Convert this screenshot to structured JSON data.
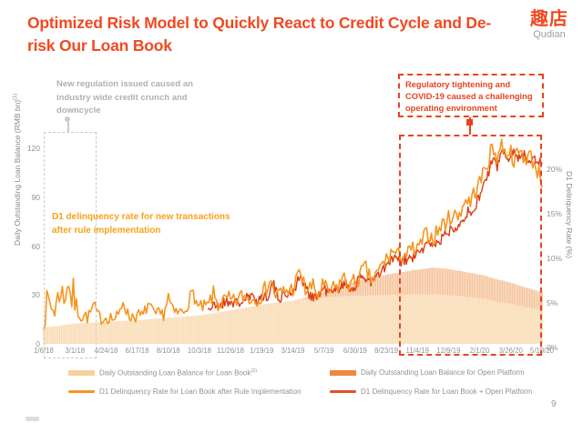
{
  "slide": {
    "title": "Optimized Risk Model to Quickly React to Credit Cycle and De-risk Our Loan Book",
    "page_number": "9",
    "logo": {
      "cn": "趣店",
      "en": "Qudian"
    }
  },
  "annotations": {
    "gray_note": "New regulation issued caused an industry wide credit crunch and downcycle",
    "orange_note": "D1 delinquency rate for new transactions after rule implementation",
    "red_note": "Regulatory tightening and COVID-19 caused a challenging operating environment"
  },
  "colors": {
    "brand": "#F04A21",
    "red_dashed": "#E8431F",
    "orange_line": "#F7941D",
    "red_line": "#DE3B12",
    "area_light_bar": "#F8D9AF",
    "area_light_fill": "#FDEEDA",
    "area_mid_bar": "#EF9E5C",
    "area_mid_fill": "#F6C396",
    "gray_dashed": "#CBCBCB"
  },
  "legend": [
    {
      "swatch": "area",
      "color": "#F9CF9B",
      "label": "Daily Outstanding Loan Balance for Loan Book",
      "sup": "(2)",
      "col": 0,
      "row": 0
    },
    {
      "swatch": "area",
      "color": "#F0873B",
      "label": "Daily Outstanding Loan Balance for Open Platform",
      "sup": "",
      "col": 1,
      "row": 0
    },
    {
      "swatch": "line",
      "color": "#F7941D",
      "label": "D1 Delinquency Rate for Loan Book after Rule Implementation",
      "sup": "",
      "col": 0,
      "row": 1
    },
    {
      "swatch": "line",
      "color": "#E2502B",
      "label": "D1 Delinquency Rate for Loan Book + Open Platform",
      "sup": "",
      "col": 1,
      "row": 1
    }
  ],
  "chart_data": {
    "type": "area+line",
    "title": "",
    "grid": false,
    "legend_position": "bottom",
    "x_tick_labels": [
      "1/6/18",
      "3/1/18",
      "4/24/18",
      "6/17/18",
      "8/10/18",
      "10/3/18",
      "11/26/18",
      "1/19/19",
      "3/14/19",
      "5/7/19",
      "6/30/19",
      "8/23/19",
      "11/4/19",
      "12/9/19",
      "2/1/20",
      "3/26/20",
      "5/19/20"
    ],
    "left_axis": {
      "label": "Daily Outstanding Loan Balance (RMB bn)",
      "sup": "(1)",
      "tick_values": [
        0,
        30,
        60,
        90,
        120
      ],
      "tick_labels": [
        "0",
        "30",
        "60",
        "90",
        "120"
      ],
      "range": [
        0,
        134
      ]
    },
    "right_axis": {
      "label": "D1 Delinquency Rate (%)",
      "tick_values": [
        0,
        5,
        10,
        15,
        20
      ],
      "tick_labels": [
        "0%",
        "5%",
        "10%",
        "15%",
        "20%"
      ],
      "range": [
        0,
        22.5
      ]
    },
    "series": [
      {
        "name": "Daily Outstanding Loan Balance for Loan Book",
        "type": "area",
        "axis": "left",
        "keypoints": [
          [
            0,
            10
          ],
          [
            0.03,
            11
          ],
          [
            0.0625,
            12.5
          ],
          [
            0.125,
            13.5
          ],
          [
            0.1875,
            14.5
          ],
          [
            0.25,
            16
          ],
          [
            0.3125,
            17.5
          ],
          [
            0.375,
            20.5
          ],
          [
            0.4375,
            24
          ],
          [
            0.5,
            26.5
          ],
          [
            0.5625,
            28.5
          ],
          [
            0.625,
            29.5
          ],
          [
            0.6875,
            30
          ],
          [
            0.75,
            30.5
          ],
          [
            0.8125,
            30
          ],
          [
            0.875,
            28
          ],
          [
            0.9375,
            24.5
          ],
          [
            1,
            20.5
          ]
        ]
      },
      {
        "name": "Daily Outstanding Loan Balance for Open Platform",
        "type": "area-stacked",
        "axis": "left",
        "keypoints": [
          [
            0,
            0
          ],
          [
            0.5,
            0
          ],
          [
            0.52,
            0.8
          ],
          [
            0.5625,
            3.5
          ],
          [
            0.625,
            9
          ],
          [
            0.6875,
            12.5
          ],
          [
            0.75,
            15
          ],
          [
            0.78,
            16.5
          ],
          [
            0.8125,
            16
          ],
          [
            0.875,
            14.5
          ],
          [
            0.9375,
            13
          ],
          [
            1,
            11
          ]
        ]
      },
      {
        "name": "D1 Delinquency Rate for Loan Book after Rule Implementation",
        "type": "line",
        "axis": "right",
        "x_start": 0,
        "jitter": 0.5,
        "keypoints": [
          [
            0,
            3.3
          ],
          [
            0.01,
            4.8
          ],
          [
            0.02,
            3.8
          ],
          [
            0.03,
            5.2
          ],
          [
            0.035,
            6.8
          ],
          [
            0.04,
            4.2
          ],
          [
            0.045,
            6.5
          ],
          [
            0.05,
            7.2
          ],
          [
            0.055,
            4.6
          ],
          [
            0.06,
            5.8
          ],
          [
            0.065,
            3.6
          ],
          [
            0.07,
            4.4
          ],
          [
            0.08,
            3.2
          ],
          [
            0.09,
            3.0
          ],
          [
            0.1,
            4.3
          ],
          [
            0.11,
            3.0
          ],
          [
            0.12,
            2.9
          ],
          [
            0.13,
            3.1
          ],
          [
            0.14,
            2.8
          ],
          [
            0.15,
            3.0
          ],
          [
            0.16,
            5.0
          ],
          [
            0.17,
            3.0
          ],
          [
            0.18,
            3.2
          ],
          [
            0.2,
            3.1
          ],
          [
            0.21,
            4.6
          ],
          [
            0.22,
            3.2
          ],
          [
            0.24,
            3.3
          ],
          [
            0.25,
            5.3
          ],
          [
            0.26,
            3.4
          ],
          [
            0.28,
            3.6
          ],
          [
            0.3,
            5.8
          ],
          [
            0.31,
            4.0
          ],
          [
            0.33,
            4.2
          ],
          [
            0.34,
            5.6
          ],
          [
            0.35,
            4.4
          ],
          [
            0.37,
            5.0
          ],
          [
            0.38,
            4.6
          ],
          [
            0.4,
            5.4
          ],
          [
            0.42,
            5.0
          ],
          [
            0.44,
            5.6
          ],
          [
            0.455,
            7.3
          ],
          [
            0.465,
            5.4
          ],
          [
            0.48,
            5.8
          ],
          [
            0.5,
            6.2
          ],
          [
            0.515,
            8.1
          ],
          [
            0.525,
            6.0
          ],
          [
            0.54,
            6.4
          ],
          [
            0.55,
            5.4
          ],
          [
            0.56,
            6.6
          ],
          [
            0.57,
            5.8
          ],
          [
            0.59,
            6.4
          ],
          [
            0.6,
            7.4
          ],
          [
            0.615,
            6.6
          ],
          [
            0.63,
            7.2
          ],
          [
            0.645,
            8.6
          ],
          [
            0.655,
            7.2
          ],
          [
            0.67,
            7.8
          ],
          [
            0.68,
            9.0
          ],
          [
            0.69,
            9.6
          ],
          [
            0.7,
            10.4
          ],
          [
            0.71,
            9.8
          ],
          [
            0.72,
            10.2
          ],
          [
            0.73,
            10.0
          ],
          [
            0.74,
            10.6
          ],
          [
            0.75,
            10.4
          ],
          [
            0.76,
            11.6
          ],
          [
            0.77,
            12.4
          ],
          [
            0.78,
            11.8
          ],
          [
            0.79,
            12.6
          ],
          [
            0.8,
            13.4
          ],
          [
            0.81,
            13.8
          ],
          [
            0.82,
            14.6
          ],
          [
            0.83,
            14.2
          ],
          [
            0.84,
            15.4
          ],
          [
            0.85,
            16.4
          ],
          [
            0.855,
            15.6
          ],
          [
            0.865,
            17.2
          ],
          [
            0.875,
            18.0
          ],
          [
            0.885,
            19.6
          ],
          [
            0.895,
            21.0
          ],
          [
            0.9,
            22.0
          ],
          [
            0.91,
            21.0
          ],
          [
            0.92,
            22.6
          ],
          [
            0.925,
            21.4
          ],
          [
            0.935,
            21.8
          ],
          [
            0.945,
            20.6
          ],
          [
            0.955,
            21.6
          ],
          [
            0.965,
            20.8
          ],
          [
            0.975,
            21.2
          ],
          [
            0.985,
            20.2
          ],
          [
            0.995,
            19.0
          ],
          [
            1,
            18.3
          ]
        ]
      },
      {
        "name": "D1 Delinquency Rate for Loan Book + Open Platform",
        "type": "line",
        "axis": "right",
        "x_start": 0.33,
        "jitter": 0.4,
        "keypoints": [
          [
            0.33,
            4.0
          ],
          [
            0.35,
            4.3
          ],
          [
            0.37,
            4.8
          ],
          [
            0.39,
            4.5
          ],
          [
            0.41,
            5.2
          ],
          [
            0.43,
            5.0
          ],
          [
            0.45,
            5.5
          ],
          [
            0.46,
            6.8
          ],
          [
            0.47,
            5.2
          ],
          [
            0.49,
            5.6
          ],
          [
            0.5,
            5.9
          ],
          [
            0.515,
            7.6
          ],
          [
            0.53,
            5.7
          ],
          [
            0.55,
            5.2
          ],
          [
            0.56,
            6.2
          ],
          [
            0.58,
            5.6
          ],
          [
            0.6,
            6.8
          ],
          [
            0.62,
            6.2
          ],
          [
            0.64,
            7.6
          ],
          [
            0.66,
            7.0
          ],
          [
            0.68,
            8.2
          ],
          [
            0.69,
            8.8
          ],
          [
            0.7,
            9.6
          ],
          [
            0.715,
            9.2
          ],
          [
            0.73,
            9.4
          ],
          [
            0.745,
            9.8
          ],
          [
            0.76,
            10.6
          ],
          [
            0.775,
            11.4
          ],
          [
            0.79,
            11.2
          ],
          [
            0.805,
            12.2
          ],
          [
            0.82,
            13.0
          ],
          [
            0.835,
            13.6
          ],
          [
            0.85,
            14.8
          ],
          [
            0.86,
            14.4
          ],
          [
            0.87,
            16.0
          ],
          [
            0.88,
            17.4
          ],
          [
            0.89,
            18.8
          ],
          [
            0.9,
            20.4
          ],
          [
            0.91,
            20.0
          ],
          [
            0.92,
            21.6
          ],
          [
            0.93,
            20.8
          ],
          [
            0.94,
            21.8
          ],
          [
            0.95,
            20.8
          ],
          [
            0.96,
            21.4
          ],
          [
            0.97,
            20.6
          ],
          [
            0.98,
            21.0
          ],
          [
            0.99,
            20.6
          ],
          [
            1,
            20.2
          ]
        ]
      }
    ]
  }
}
